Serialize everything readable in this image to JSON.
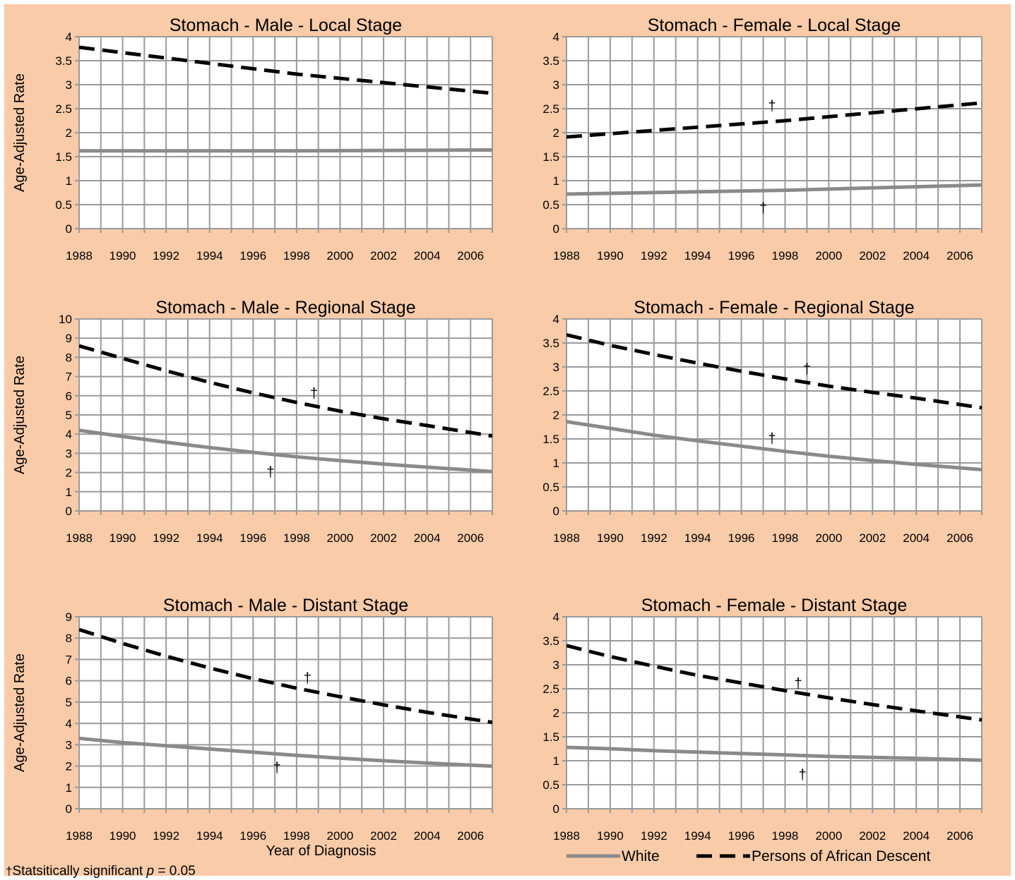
{
  "x_axis_title": "Year of Diagnosis",
  "y_axis_title": "Age-Adjusted Rate",
  "legend": {
    "white_label": "White",
    "african_label": "Persons of African Descent"
  },
  "footnote": {
    "dagger": "†",
    "text_before": "Statsitically significant ",
    "p": "p",
    "text_after": " = 0.05"
  },
  "colors": {
    "background": "#f9cba8",
    "plot_area": "#ffffff",
    "grid": "#9a9a9a",
    "white_series": "#8a8a8a",
    "african_series": "#000000"
  },
  "chart_data": [
    {
      "type": "line",
      "title": "Stomach - Male - Local Stage",
      "ylabel": "Age-Adjusted Rate",
      "xlabel": "",
      "xlim": [
        1988,
        2007
      ],
      "ylim": [
        0,
        4
      ],
      "yticks": [
        "0",
        "0.5",
        "1",
        "1.5",
        "2",
        "2.5",
        "3",
        "3.5",
        "4"
      ],
      "xticks": [
        "1988",
        "1990",
        "1992",
        "1994",
        "1996",
        "1998",
        "2000",
        "2002",
        "2004",
        "2006"
      ],
      "grid": true,
      "series": [
        {
          "name": "White",
          "style": "solid",
          "x": [
            1988,
            1998,
            2007
          ],
          "y": [
            1.62,
            1.62,
            1.64
          ]
        },
        {
          "name": "Persons of African Descent",
          "style": "dashed",
          "x": [
            1988,
            1998,
            2007
          ],
          "y": [
            3.78,
            3.22,
            2.82
          ]
        }
      ],
      "annotations": []
    },
    {
      "type": "line",
      "title": "Stomach - Female - Local Stage",
      "ylabel": "",
      "xlabel": "",
      "xlim": [
        1988,
        2007
      ],
      "ylim": [
        0,
        4
      ],
      "yticks": [
        "0",
        "0.5",
        "1",
        "1.5",
        "2",
        "2.5",
        "3",
        "3.5",
        "4"
      ],
      "xticks": [
        "1988",
        "1990",
        "1992",
        "1994",
        "1996",
        "1998",
        "2000",
        "2002",
        "2004",
        "2006"
      ],
      "grid": true,
      "series": [
        {
          "name": "White",
          "style": "solid",
          "x": [
            1988,
            1998,
            2007
          ],
          "y": [
            0.72,
            0.8,
            0.91
          ]
        },
        {
          "name": "Persons of African Descent",
          "style": "dashed",
          "x": [
            1988,
            1998,
            2007
          ],
          "y": [
            1.91,
            2.25,
            2.62
          ]
        }
      ],
      "annotations": [
        {
          "text": "†",
          "x": 1997.4,
          "y": 2.55
        },
        {
          "text": "†",
          "x": 1997.0,
          "y": 0.42
        }
      ]
    },
    {
      "type": "line",
      "title": "Stomach - Male - Regional Stage",
      "ylabel": "Age-Adjusted Rate",
      "xlabel": "",
      "xlim": [
        1988,
        2007
      ],
      "ylim": [
        0,
        10
      ],
      "yticks": [
        "0",
        "1",
        "2",
        "3",
        "4",
        "5",
        "6",
        "7",
        "8",
        "9",
        "10"
      ],
      "xticks": [
        "1988",
        "1990",
        "1992",
        "1994",
        "1996",
        "1998",
        "2000",
        "2002",
        "2004",
        "2006"
      ],
      "grid": true,
      "series": [
        {
          "name": "White",
          "style": "solid",
          "x": [
            1988,
            1990,
            1992,
            1994,
            1996,
            1998,
            2000,
            2002,
            2004,
            2007
          ],
          "y": [
            4.2,
            3.88,
            3.58,
            3.3,
            3.05,
            2.82,
            2.62,
            2.44,
            2.28,
            2.05
          ]
        },
        {
          "name": "Persons of African Descent",
          "style": "dashed",
          "x": [
            1988,
            1990,
            1992,
            1994,
            1996,
            1998,
            2000,
            2002,
            2004,
            2007
          ],
          "y": [
            8.6,
            7.95,
            7.3,
            6.7,
            6.15,
            5.65,
            5.2,
            4.8,
            4.45,
            3.9
          ]
        }
      ],
      "annotations": [
        {
          "text": "†",
          "x": 1998.8,
          "y": 6.1
        },
        {
          "text": "†",
          "x": 1996.8,
          "y": 2.0
        }
      ]
    },
    {
      "type": "line",
      "title": "Stomach - Female - Regional Stage",
      "ylabel": "",
      "xlabel": "",
      "xlim": [
        1988,
        2007
      ],
      "ylim": [
        0,
        4
      ],
      "yticks": [
        "0",
        "0.5",
        "1",
        "1.5",
        "2",
        "2.5",
        "3",
        "3.5",
        "4"
      ],
      "xticks": [
        "1988",
        "1990",
        "1992",
        "1994",
        "1996",
        "1998",
        "2000",
        "2002",
        "2004",
        "2006"
      ],
      "grid": true,
      "series": [
        {
          "name": "White",
          "style": "solid",
          "x": [
            1988,
            1990,
            1992,
            1994,
            1996,
            1998,
            2000,
            2002,
            2004,
            2007
          ],
          "y": [
            1.86,
            1.72,
            1.58,
            1.46,
            1.35,
            1.24,
            1.14,
            1.05,
            0.97,
            0.86
          ]
        },
        {
          "name": "Persons of African Descent",
          "style": "dashed",
          "x": [
            1988,
            1990,
            1992,
            1994,
            1996,
            1998,
            2000,
            2002,
            2004,
            2007
          ],
          "y": [
            3.67,
            3.45,
            3.26,
            3.08,
            2.91,
            2.75,
            2.6,
            2.47,
            2.35,
            2.15
          ]
        }
      ],
      "annotations": [
        {
          "text": "†",
          "x": 1999.0,
          "y": 2.95
        },
        {
          "text": "†",
          "x": 1997.4,
          "y": 1.5
        }
      ]
    },
    {
      "type": "line",
      "title": "Stomach - Male - Distant Stage",
      "ylabel": "Age-Adjusted Rate",
      "xlabel": "Year of Diagnosis",
      "xlim": [
        1988,
        2007
      ],
      "ylim": [
        0,
        9
      ],
      "yticks": [
        "0",
        "1",
        "2",
        "3",
        "4",
        "5",
        "6",
        "7",
        "8",
        "9"
      ],
      "xticks": [
        "1988",
        "1990",
        "1992",
        "1994",
        "1996",
        "1998",
        "2000",
        "2002",
        "2004",
        "2006"
      ],
      "grid": true,
      "series": [
        {
          "name": "White",
          "style": "solid",
          "x": [
            1988,
            1990,
            1992,
            1994,
            1996,
            1998,
            2000,
            2002,
            2004,
            2007
          ],
          "y": [
            3.3,
            3.1,
            2.95,
            2.8,
            2.65,
            2.5,
            2.37,
            2.25,
            2.14,
            2.0
          ]
        },
        {
          "name": "Persons of African Descent",
          "style": "dashed",
          "x": [
            1988,
            1990,
            1992,
            1994,
            1996,
            1998,
            2000,
            2002,
            2004,
            2007
          ],
          "y": [
            8.4,
            7.75,
            7.15,
            6.6,
            6.1,
            5.65,
            5.25,
            4.87,
            4.52,
            4.05
          ]
        }
      ],
      "annotations": [
        {
          "text": "†",
          "x": 1998.5,
          "y": 6.1
        },
        {
          "text": "†",
          "x": 1997.1,
          "y": 1.9
        }
      ]
    },
    {
      "type": "line",
      "title": "Stomach - Female - Distant Stage",
      "ylabel": "",
      "xlabel": "",
      "xlim": [
        1988,
        2007
      ],
      "ylim": [
        0,
        4
      ],
      "yticks": [
        "0",
        "0.5",
        "1",
        "1.5",
        "2",
        "2.5",
        "3",
        "3.5",
        "4"
      ],
      "xticks": [
        "1988",
        "1990",
        "1992",
        "1994",
        "1996",
        "1998",
        "2000",
        "2002",
        "2004",
        "2006"
      ],
      "grid": true,
      "series": [
        {
          "name": "White",
          "style": "solid",
          "x": [
            1988,
            1990,
            1992,
            1994,
            1996,
            1998,
            2000,
            2002,
            2004,
            2007
          ],
          "y": [
            1.28,
            1.25,
            1.21,
            1.18,
            1.15,
            1.12,
            1.09,
            1.07,
            1.05,
            1.01
          ]
        },
        {
          "name": "Persons of African Descent",
          "style": "dashed",
          "x": [
            1988,
            1990,
            1992,
            1994,
            1996,
            1998,
            2000,
            2002,
            2004,
            2007
          ],
          "y": [
            3.4,
            3.17,
            2.97,
            2.78,
            2.62,
            2.46,
            2.31,
            2.17,
            2.04,
            1.85
          ]
        }
      ],
      "annotations": [
        {
          "text": "†",
          "x": 1998.6,
          "y": 2.6
        },
        {
          "text": "†",
          "x": 1998.8,
          "y": 0.7
        }
      ]
    }
  ]
}
